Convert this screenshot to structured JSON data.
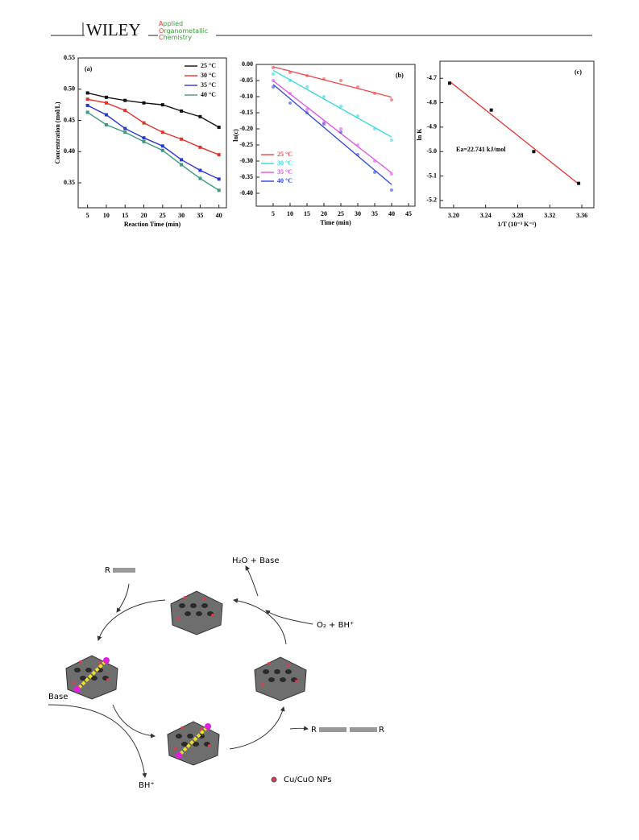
{
  "header": {
    "brand": "WILEY",
    "journal": [
      "Applied",
      "Organometallic",
      "Chemistry"
    ]
  },
  "chart_data": [
    {
      "type": "line",
      "panel_label": "(a)",
      "x_label": "Reaction Time (min)",
      "y_label": "Concentration (mol/L)",
      "x": [
        5,
        10,
        15,
        20,
        25,
        30,
        35,
        40
      ],
      "xlim": [
        2.5,
        42
      ],
      "xticks": [
        5,
        10,
        15,
        20,
        25,
        30,
        35,
        40
      ],
      "ylim": [
        0.31,
        0.55
      ],
      "yticks": [
        0.35,
        {
          "value": 0.4,
          "label": "0.40"
        },
        0.45,
        {
          "value": 0.5,
          "label": "0.50"
        },
        0.55
      ],
      "legend": "upper right",
      "grid": false,
      "series": [
        {
          "name": "25 °C",
          "color": "#111111",
          "values": [
            0.494,
            0.487,
            0.482,
            0.478,
            0.475,
            0.465,
            0.456,
            0.439
          ]
        },
        {
          "name": "30 °C",
          "color": "#e8302a",
          "values": [
            0.484,
            0.478,
            0.466,
            0.446,
            0.431,
            0.42,
            0.407,
            0.395
          ]
        },
        {
          "name": "35 °C",
          "color": "#2a35d8",
          "values": [
            0.474,
            0.459,
            0.437,
            0.422,
            0.409,
            0.387,
            0.37,
            0.356
          ]
        },
        {
          "name": "40 °C",
          "color": "#3a9a80",
          "values": [
            0.463,
            0.443,
            0.431,
            0.416,
            0.402,
            0.379,
            0.357,
            0.338
          ]
        }
      ]
    },
    {
      "type": "scatter",
      "panel_label": "(b)",
      "x_label": "Time (min)",
      "y_label": "ln(c)",
      "trendline": true,
      "x": [
        5,
        10,
        15,
        20,
        25,
        30,
        35,
        40
      ],
      "xlim": [
        0,
        45
      ],
      "xticks": [
        5,
        10,
        15,
        20,
        25,
        30,
        35,
        40,
        45
      ],
      "ylim": [
        -0.44,
        0
      ],
      "yticks": [
        {
          "value": 0,
          "label": "0.00"
        },
        -0.05,
        {
          "value": -0.1,
          "label": "-0.10"
        },
        -0.15,
        {
          "value": -0.2,
          "label": "-0.20"
        },
        -0.25,
        {
          "value": -0.3,
          "label": "-0.30"
        },
        -0.35,
        {
          "value": -0.4,
          "label": "-0.40"
        }
      ],
      "legend": "lower left",
      "grid": false,
      "series": [
        {
          "name": "25 °C",
          "color": "#f0484a",
          "values": [
            -0.01,
            -0.025,
            -0.035,
            -0.045,
            -0.05,
            -0.07,
            -0.09,
            -0.11
          ]
        },
        {
          "name": "30 °C",
          "color": "#2fd9dc",
          "values": [
            -0.03,
            -0.05,
            -0.07,
            -0.1,
            -0.13,
            -0.16,
            -0.2,
            -0.235
          ]
        },
        {
          "name": "35 °C",
          "color": "#e64ee6",
          "values": [
            -0.05,
            -0.09,
            -0.14,
            -0.18,
            -0.2,
            -0.25,
            -0.3,
            -0.34
          ]
        },
        {
          "name": "40 °C",
          "color": "#3044e0",
          "values": [
            -0.07,
            -0.12,
            -0.15,
            -0.185,
            -0.21,
            -0.28,
            -0.335,
            -0.39
          ]
        }
      ]
    },
    {
      "type": "scatter",
      "panel_label": "(c)",
      "x_label": "1/T (10⁻³ K⁻¹)",
      "y_label": "ln K",
      "trendline": true,
      "annotation": "Ea=22.741 kJ/mol",
      "x": [
        3.195,
        3.247,
        3.3,
        3.356
      ],
      "xlim": [
        3.183,
        3.375
      ],
      "xticks": [
        {
          "value": 3.2,
          "label": "3.20"
        },
        3.24,
        3.28,
        3.32,
        3.36
      ],
      "ylim": [
        -5.23,
        -4.63
      ],
      "yticks": [
        -4.7,
        -4.8,
        -4.9,
        {
          "value": -5,
          "label": "-5.0"
        },
        -5.1,
        {
          "value": -5.2,
          "label": "-5.2"
        }
      ],
      "grid": false,
      "series": [
        {
          "color": "#111111",
          "line_color": "#e8302a",
          "values": [
            -4.72,
            -4.83,
            -5.0,
            -5.13
          ]
        }
      ]
    }
  ],
  "scheme": {
    "reactant": "R",
    "top_out": "H₂O  +  Base",
    "right_in": "O₂  +  BH⁺",
    "left_in": "Base",
    "bottom_out": "BH⁺",
    "product_left": "R",
    "product_right": "R",
    "legend": "Cu/CuO NPs"
  }
}
